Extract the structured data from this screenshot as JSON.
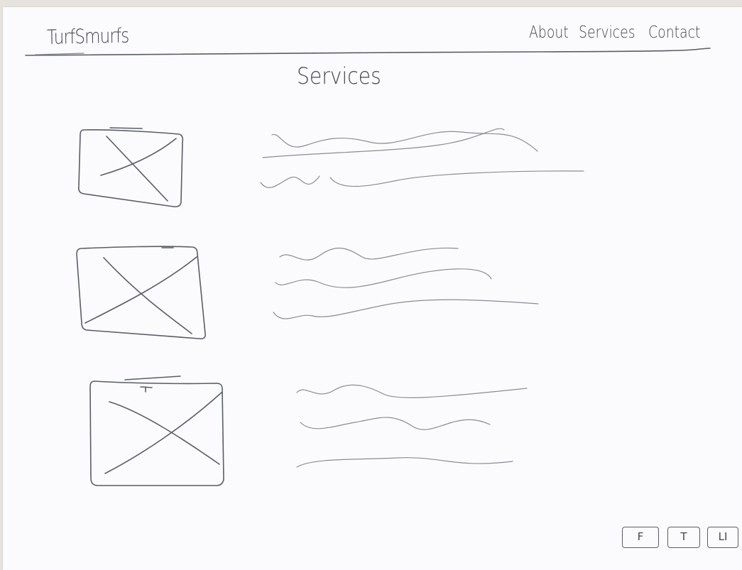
{
  "header": {
    "brand": "TurfSmurfs",
    "nav": [
      {
        "label": "About"
      },
      {
        "label": "Services"
      },
      {
        "label": "Contact"
      }
    ]
  },
  "main": {
    "title": "Services",
    "services": [
      {
        "image": "image-placeholder",
        "text_lines": 3
      },
      {
        "image": "image-placeholder",
        "text_lines": 3
      },
      {
        "image": "image-placeholder",
        "text_lines": 3
      }
    ]
  },
  "footer": {
    "social": [
      {
        "label": "F",
        "icon": "facebook-icon"
      },
      {
        "label": "T",
        "icon": "twitter-icon"
      },
      {
        "label": "LI",
        "icon": "linkedin-icon"
      }
    ]
  },
  "colors": {
    "ink": "#5b5d66",
    "paper": "#fbfbfd",
    "table": "#e6e3df"
  }
}
